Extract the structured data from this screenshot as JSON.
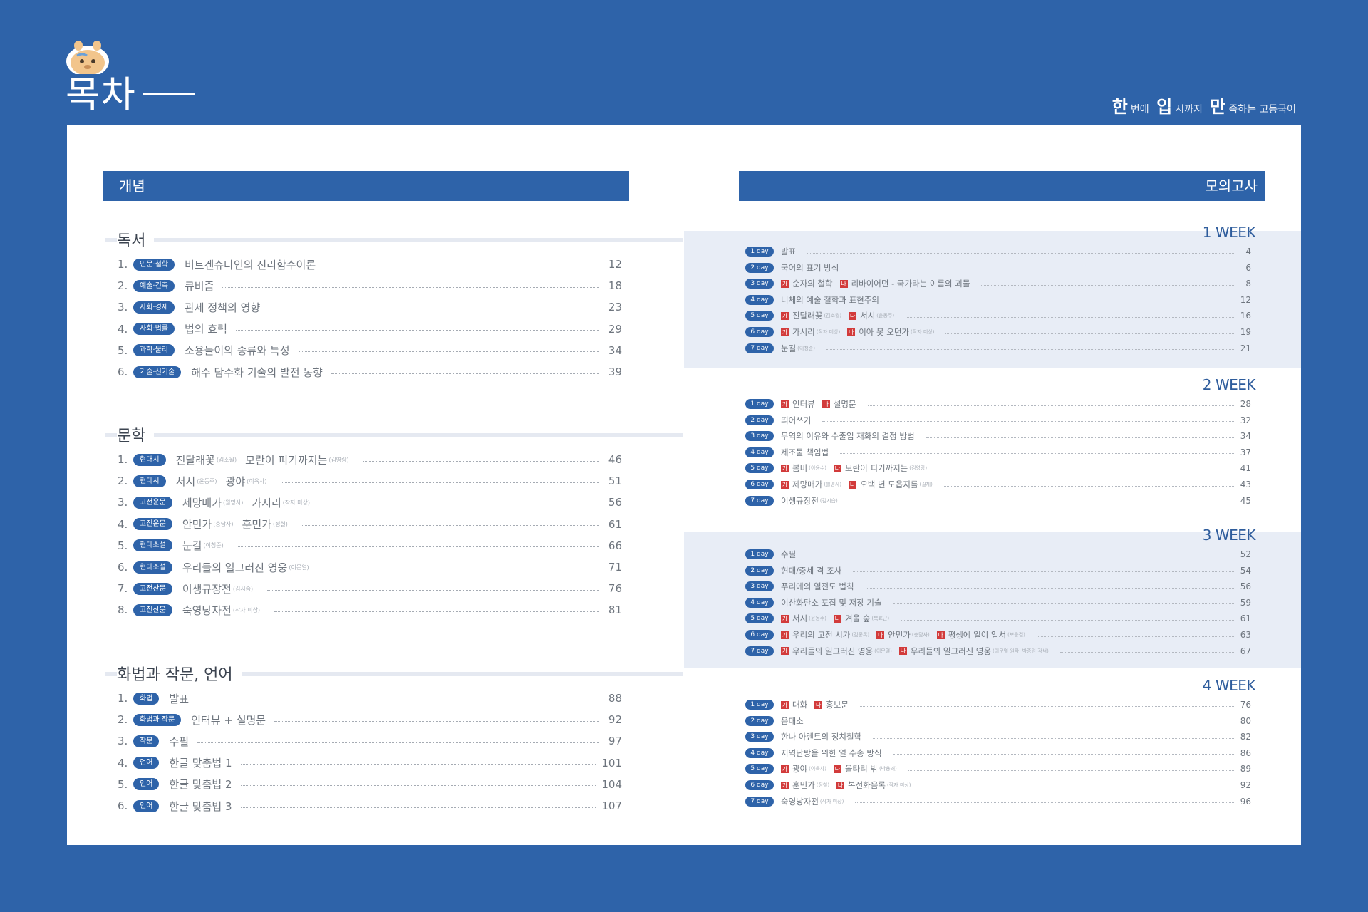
{
  "header": {
    "title": "목차",
    "tagline": [
      {
        "big": "한",
        "small": "번에"
      },
      {
        "big": "입",
        "small": "시까지"
      },
      {
        "big": "만",
        "small": "족하는 고등국어"
      }
    ]
  },
  "left_bar": "개념",
  "right_bar": "모의고사",
  "sections": [
    {
      "title": "독서",
      "items": [
        {
          "num": "1.",
          "cat": "인문·철학",
          "title": "비트겐슈타인의 진리함수이론",
          "sub": "",
          "title2": "",
          "sub2": "",
          "page": "12"
        },
        {
          "num": "2.",
          "cat": "예술·건축",
          "title": "큐비즘",
          "sub": "",
          "title2": "",
          "sub2": "",
          "page": "18"
        },
        {
          "num": "3.",
          "cat": "사회·경제",
          "title": "관세 정책의 영향",
          "sub": "",
          "title2": "",
          "sub2": "",
          "page": "23"
        },
        {
          "num": "4.",
          "cat": "사회·법률",
          "title": "법의 효력",
          "sub": "",
          "title2": "",
          "sub2": "",
          "page": "29"
        },
        {
          "num": "5.",
          "cat": "과학·물리",
          "title": "소용돌이의 종류와 특성",
          "sub": "",
          "title2": "",
          "sub2": "",
          "page": "34"
        },
        {
          "num": "6.",
          "cat": "기술·신기술",
          "title": "해수 담수화 기술의 발전 동향",
          "sub": "",
          "title2": "",
          "sub2": "",
          "page": "39"
        }
      ]
    },
    {
      "title": "문학",
      "items": [
        {
          "num": "1.",
          "cat": "현대시",
          "title": "진달래꽃",
          "sub": "(김소월)",
          "title2": "모란이 피기까지는",
          "sub2": "(김영랑)",
          "page": "46"
        },
        {
          "num": "2.",
          "cat": "현대시",
          "title": "서시",
          "sub": "(윤동주)",
          "title2": "광야",
          "sub2": "(이육사)",
          "page": "51"
        },
        {
          "num": "3.",
          "cat": "고전운문",
          "title": "제망매가",
          "sub": "(월명사)",
          "title2": "가시리",
          "sub2": "(작자 미상)",
          "page": "56"
        },
        {
          "num": "4.",
          "cat": "고전운문",
          "title": "안민가",
          "sub": "(충담사)",
          "title2": "훈민가",
          "sub2": "(정철)",
          "page": "61"
        },
        {
          "num": "5.",
          "cat": "현대소설",
          "title": "눈길",
          "sub": "(이청준)",
          "title2": "",
          "sub2": "",
          "page": "66"
        },
        {
          "num": "6.",
          "cat": "현대소설",
          "title": "우리들의 일그러진 영웅",
          "sub": "(이문열)",
          "title2": "",
          "sub2": "",
          "page": "71"
        },
        {
          "num": "7.",
          "cat": "고전산문",
          "title": "이생규장전",
          "sub": "(김시습)",
          "title2": "",
          "sub2": "",
          "page": "76"
        },
        {
          "num": "8.",
          "cat": "고전산문",
          "title": "숙영낭자전",
          "sub": "(작자 미상)",
          "title2": "",
          "sub2": "",
          "page": "81"
        }
      ]
    },
    {
      "title": "화법과 작문, 언어",
      "items": [
        {
          "num": "1.",
          "cat": "화법",
          "title": "발표",
          "sub": "",
          "title2": "",
          "sub2": "",
          "page": "88"
        },
        {
          "num": "2.",
          "cat": "화법과 작문",
          "title": "인터뷰 + 설명문",
          "sub": "",
          "title2": "",
          "sub2": "",
          "page": "92"
        },
        {
          "num": "3.",
          "cat": "작문",
          "title": "수필",
          "sub": "",
          "title2": "",
          "sub2": "",
          "page": "97"
        },
        {
          "num": "4.",
          "cat": "언어",
          "title": "한글 맞춤법 1",
          "sub": "",
          "title2": "",
          "sub2": "",
          "page": "101"
        },
        {
          "num": "5.",
          "cat": "언어",
          "title": "한글 맞춤법 2",
          "sub": "",
          "title2": "",
          "sub2": "",
          "page": "104"
        },
        {
          "num": "6.",
          "cat": "언어",
          "title": "한글 맞춤법 3",
          "sub": "",
          "title2": "",
          "sub2": "",
          "page": "107"
        }
      ]
    }
  ],
  "weeks": [
    {
      "label": "1 WEEK",
      "days": [
        {
          "day": "1 day",
          "tag1": "",
          "t1": "발표",
          "s1": "",
          "tag2": "",
          "t2": "",
          "s2": "",
          "tag3": "",
          "t3": "",
          "s3": "",
          "page": "4"
        },
        {
          "day": "2 day",
          "tag1": "",
          "t1": "국어의 표기 방식",
          "s1": "",
          "tag2": "",
          "t2": "",
          "s2": "",
          "tag3": "",
          "t3": "",
          "s3": "",
          "page": "6"
        },
        {
          "day": "3 day",
          "tag1": "가",
          "t1": "순자의 철학",
          "s1": "",
          "tag2": "나",
          "t2": "리바이어던 - 국가라는 이름의 괴물",
          "s2": "",
          "tag3": "",
          "t3": "",
          "s3": "",
          "page": "8"
        },
        {
          "day": "4 day",
          "tag1": "",
          "t1": "니체의 예술 철학과 표현주의",
          "s1": "",
          "tag2": "",
          "t2": "",
          "s2": "",
          "tag3": "",
          "t3": "",
          "s3": "",
          "page": "12"
        },
        {
          "day": "5 day",
          "tag1": "가",
          "t1": "진달래꽃",
          "s1": "(김소월)",
          "tag2": "나",
          "t2": "서시",
          "s2": "(윤동주)",
          "tag3": "",
          "t3": "",
          "s3": "",
          "page": "16"
        },
        {
          "day": "6 day",
          "tag1": "가",
          "t1": "가시리",
          "s1": "(작자 미상)",
          "tag2": "나",
          "t2": "이아 못 오던가",
          "s2": "(작자 미상)",
          "tag3": "",
          "t3": "",
          "s3": "",
          "page": "19"
        },
        {
          "day": "7 day",
          "tag1": "",
          "t1": "눈길",
          "s1": "(이청준)",
          "tag2": "",
          "t2": "",
          "s2": "",
          "tag3": "",
          "t3": "",
          "s3": "",
          "page": "21"
        }
      ]
    },
    {
      "label": "2 WEEK",
      "days": [
        {
          "day": "1 day",
          "tag1": "가",
          "t1": "인터뷰",
          "s1": "",
          "tag2": "나",
          "t2": "설명문",
          "s2": "",
          "tag3": "",
          "t3": "",
          "s3": "",
          "page": "28"
        },
        {
          "day": "2 day",
          "tag1": "",
          "t1": "띄어쓰기",
          "s1": "",
          "tag2": "",
          "t2": "",
          "s2": "",
          "tag3": "",
          "t3": "",
          "s3": "",
          "page": "32"
        },
        {
          "day": "3 day",
          "tag1": "",
          "t1": "무역의 이유와 수출입 재화의 결정 방법",
          "s1": "",
          "tag2": "",
          "t2": "",
          "s2": "",
          "tag3": "",
          "t3": "",
          "s3": "",
          "page": "34"
        },
        {
          "day": "4 day",
          "tag1": "",
          "t1": "제조물 책임법",
          "s1": "",
          "tag2": "",
          "t2": "",
          "s2": "",
          "tag3": "",
          "t3": "",
          "s3": "",
          "page": "37"
        },
        {
          "day": "5 day",
          "tag1": "가",
          "t1": "봄비",
          "s1": "(이용수)",
          "tag2": "나",
          "t2": "모란이 피기까지는",
          "s2": "(김영랑)",
          "tag3": "",
          "t3": "",
          "s3": "",
          "page": "41"
        },
        {
          "day": "6 day",
          "tag1": "가",
          "t1": "제망매가",
          "s1": "(월명사)",
          "tag2": "나",
          "t2": "오백 년 도읍지를",
          "s2": "(길재)",
          "tag3": "",
          "t3": "",
          "s3": "",
          "page": "43"
        },
        {
          "day": "7 day",
          "tag1": "",
          "t1": "이생규장전",
          "s1": "(김시습)",
          "tag2": "",
          "t2": "",
          "s2": "",
          "tag3": "",
          "t3": "",
          "s3": "",
          "page": "45"
        }
      ]
    },
    {
      "label": "3 WEEK",
      "days": [
        {
          "day": "1 day",
          "tag1": "",
          "t1": "수필",
          "s1": "",
          "tag2": "",
          "t2": "",
          "s2": "",
          "tag3": "",
          "t3": "",
          "s3": "",
          "page": "52"
        },
        {
          "day": "2 day",
          "tag1": "",
          "t1": "현대/중세 격 조사",
          "s1": "",
          "tag2": "",
          "t2": "",
          "s2": "",
          "tag3": "",
          "t3": "",
          "s3": "",
          "page": "54"
        },
        {
          "day": "3 day",
          "tag1": "",
          "t1": "푸리에의 열전도 법칙",
          "s1": "",
          "tag2": "",
          "t2": "",
          "s2": "",
          "tag3": "",
          "t3": "",
          "s3": "",
          "page": "56"
        },
        {
          "day": "4 day",
          "tag1": "",
          "t1": "이산화탄소 포집 및 저장 기술",
          "s1": "",
          "tag2": "",
          "t2": "",
          "s2": "",
          "tag3": "",
          "t3": "",
          "s3": "",
          "page": "59"
        },
        {
          "day": "5 day",
          "tag1": "가",
          "t1": "서시",
          "s1": "(윤동주)",
          "tag2": "나",
          "t2": "겨울 숲",
          "s2": "(복효근)",
          "tag3": "",
          "t3": "",
          "s3": "",
          "page": "61"
        },
        {
          "day": "6 day",
          "tag1": "가",
          "t1": "우리의 고전 시가",
          "s1": "(김종록)",
          "tag2": "나",
          "t2": "안민가",
          "s2": "(충담사)",
          "tag3": "다",
          "t3": "평생에 일이 업서",
          "s3": "(보응겸)",
          "page": "63"
        },
        {
          "day": "7 day",
          "tag1": "가",
          "t1": "우리들의 일그러진 영웅",
          "s1": "(이문열)",
          "tag2": "나",
          "t2": "우리들의 일그러진 영웅",
          "s2": "(이문열 원작, 박종원 각색)",
          "tag3": "",
          "t3": "",
          "s3": "",
          "page": "67"
        }
      ]
    },
    {
      "label": "4 WEEK",
      "days": [
        {
          "day": "1 day",
          "tag1": "가",
          "t1": "대화",
          "s1": "",
          "tag2": "나",
          "t2": "홍보문",
          "s2": "",
          "tag3": "",
          "t3": "",
          "s3": "",
          "page": "76"
        },
        {
          "day": "2 day",
          "tag1": "",
          "t1": "음대소",
          "s1": "",
          "tag2": "",
          "t2": "",
          "s2": "",
          "tag3": "",
          "t3": "",
          "s3": "",
          "page": "80"
        },
        {
          "day": "3 day",
          "tag1": "",
          "t1": "한나 아렌트의 정치철학",
          "s1": "",
          "tag2": "",
          "t2": "",
          "s2": "",
          "tag3": "",
          "t3": "",
          "s3": "",
          "page": "82"
        },
        {
          "day": "4 day",
          "tag1": "",
          "t1": "지역난방을 위한 열 수송 방식",
          "s1": "",
          "tag2": "",
          "t2": "",
          "s2": "",
          "tag3": "",
          "t3": "",
          "s3": "",
          "page": "86"
        },
        {
          "day": "5 day",
          "tag1": "가",
          "t1": "광야",
          "s1": "(이육사)",
          "tag2": "나",
          "t2": "울타리 밖",
          "s2": "(박용래)",
          "tag3": "",
          "t3": "",
          "s3": "",
          "page": "89"
        },
        {
          "day": "6 day",
          "tag1": "가",
          "t1": "훈민가",
          "s1": "(정철)",
          "tag2": "나",
          "t2": "복선화음록",
          "s2": "(작자 미상)",
          "tag3": "",
          "t3": "",
          "s3": "",
          "page": "92"
        },
        {
          "day": "7 day",
          "tag1": "",
          "t1": "숙영낭자전",
          "s1": "(작자 미상)",
          "tag2": "",
          "t2": "",
          "s2": "",
          "tag3": "",
          "t3": "",
          "s3": "",
          "page": "96"
        }
      ]
    }
  ]
}
